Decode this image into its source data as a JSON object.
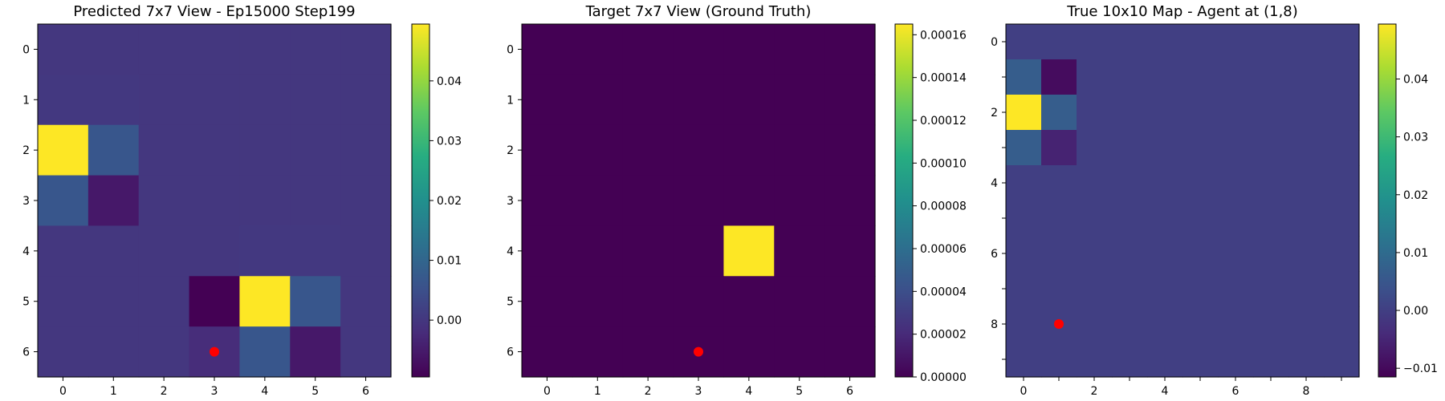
{
  "colormap": "viridis",
  "marker_color": "#ff0000",
  "chart_data": [
    {
      "type": "heatmap",
      "title": "Predicted 7x7 View - Ep15000 Step199",
      "rows": 7,
      "cols": 7,
      "values": [
        [
          0.0,
          0.0,
          0.0,
          0.0,
          0.0,
          0.0,
          0.0
        ],
        [
          0.0003,
          0.0003,
          0.0,
          0.0,
          0.0,
          0.0,
          0.0
        ],
        [
          0.0495,
          0.0065,
          0.0,
          0.0,
          0.0,
          0.0,
          0.0
        ],
        [
          0.0065,
          -0.0055,
          0.0,
          0.0,
          0.0,
          0.0,
          0.0
        ],
        [
          0.0,
          0.0,
          0.0,
          0.0,
          0.0003,
          0.0003,
          0.0
        ],
        [
          0.0,
          0.0,
          0.0,
          -0.0095,
          0.0495,
          0.0065,
          0.0
        ],
        [
          0.0,
          0.0,
          0.0,
          -0.002,
          0.0065,
          -0.0055,
          0.0
        ]
      ],
      "vmin": -0.0095,
      "vmax": 0.0495,
      "x_ticks": [
        "0",
        "1",
        "2",
        "3",
        "4",
        "5",
        "6"
      ],
      "y_ticks": [
        "0",
        "1",
        "2",
        "3",
        "4",
        "5",
        "6"
      ],
      "colorbar_ticks": [
        {
          "value": 0.0,
          "label": "0.00"
        },
        {
          "value": 0.01,
          "label": "0.01"
        },
        {
          "value": 0.02,
          "label": "0.02"
        },
        {
          "value": 0.03,
          "label": "0.03"
        },
        {
          "value": 0.04,
          "label": "0.04"
        }
      ],
      "marker": {
        "x": 3,
        "y": 6
      }
    },
    {
      "type": "heatmap",
      "title": "Target 7x7 View (Ground Truth)",
      "rows": 7,
      "cols": 7,
      "values": [
        [
          0,
          0,
          0,
          0,
          0,
          0,
          0
        ],
        [
          0,
          0,
          0,
          0,
          0,
          0,
          0
        ],
        [
          0,
          0,
          0,
          0,
          0,
          0,
          0
        ],
        [
          0,
          0,
          0,
          0,
          0,
          0,
          0
        ],
        [
          0,
          0,
          0,
          0,
          0.000165,
          0,
          0
        ],
        [
          0,
          0,
          0,
          0,
          0,
          0,
          0
        ],
        [
          0,
          0,
          0,
          0,
          0,
          0,
          0
        ]
      ],
      "vmin": 0.0,
      "vmax": 0.000165,
      "x_ticks": [
        "0",
        "1",
        "2",
        "3",
        "4",
        "5",
        "6"
      ],
      "y_ticks": [
        "0",
        "1",
        "2",
        "3",
        "4",
        "5",
        "6"
      ],
      "colorbar_ticks": [
        {
          "value": 0.0,
          "label": "0.00000"
        },
        {
          "value": 2e-05,
          "label": "0.00002"
        },
        {
          "value": 4e-05,
          "label": "0.00004"
        },
        {
          "value": 6e-05,
          "label": "0.00006"
        },
        {
          "value": 8e-05,
          "label": "0.00008"
        },
        {
          "value": 0.0001,
          "label": "0.00010"
        },
        {
          "value": 0.00012,
          "label": "0.00012"
        },
        {
          "value": 0.00014,
          "label": "0.00014"
        },
        {
          "value": 0.00016,
          "label": "0.00016"
        }
      ],
      "marker": {
        "x": 3,
        "y": 6
      }
    },
    {
      "type": "heatmap",
      "title": "True 10x10 Map - Agent at (1,8)",
      "rows": 10,
      "cols": 10,
      "values": [
        [
          0,
          0,
          0,
          0,
          0,
          0,
          0,
          0,
          0,
          0
        ],
        [
          0.0065,
          -0.0095,
          0,
          0,
          0,
          0,
          0,
          0,
          0,
          0
        ],
        [
          0.0495,
          0.0065,
          0,
          0,
          0,
          0,
          0,
          0,
          0,
          0
        ],
        [
          0.0065,
          -0.0055,
          0,
          0,
          0,
          0,
          0,
          0,
          0,
          0
        ],
        [
          0,
          0,
          0,
          0,
          0,
          0,
          0,
          0,
          0,
          0
        ],
        [
          0,
          0,
          0,
          0,
          0,
          0,
          0,
          0,
          0,
          0
        ],
        [
          0,
          0,
          0,
          0,
          0,
          0,
          0,
          0,
          0,
          0
        ],
        [
          0,
          0,
          0,
          0,
          0,
          0,
          0,
          0,
          0,
          0
        ],
        [
          0,
          0,
          0,
          0,
          0,
          0,
          0,
          0,
          0,
          0
        ],
        [
          0,
          0,
          0,
          0,
          0,
          0,
          0,
          0,
          0,
          0
        ]
      ],
      "vmin": -0.0115,
      "vmax": 0.0495,
      "x_ticks": [
        "0",
        "",
        "2",
        "",
        "4",
        "",
        "6",
        "",
        "8",
        ""
      ],
      "y_ticks": [
        "0",
        "",
        "2",
        "",
        "4",
        "",
        "6",
        "",
        "8",
        ""
      ],
      "colorbar_ticks": [
        {
          "value": -0.01,
          "label": "−0.01"
        },
        {
          "value": 0.0,
          "label": "0.00"
        },
        {
          "value": 0.01,
          "label": "0.01"
        },
        {
          "value": 0.02,
          "label": "0.02"
        },
        {
          "value": 0.03,
          "label": "0.03"
        },
        {
          "value": 0.04,
          "label": "0.04"
        }
      ],
      "marker": {
        "x": 1,
        "y": 8
      }
    }
  ]
}
